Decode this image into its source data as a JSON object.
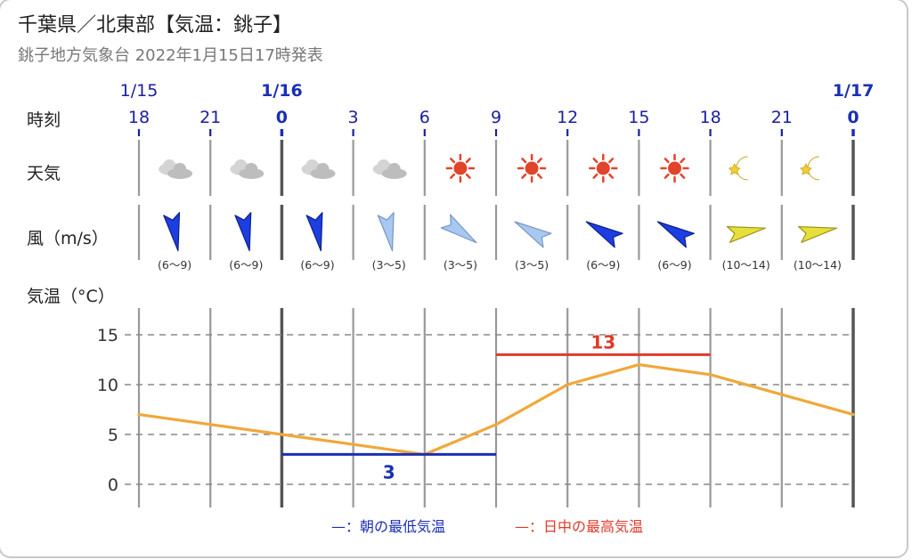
{
  "header": {
    "title": "千葉県／北東部【気温：銚子】",
    "subtitle": "銚子地方気象台 2022年1月15日17時発表"
  },
  "rows": {
    "time_label": "時刻",
    "weather_label": "天気",
    "wind_label": "風（m/s）",
    "temp_label": "気温（°C）"
  },
  "dates": [
    {
      "label": "1/15",
      "at_hour_index": 0,
      "bold": false
    },
    {
      "label": "1/16",
      "at_hour_index": 2,
      "bold": true
    },
    {
      "label": "1/17",
      "at_hour_index": 10,
      "bold": true
    }
  ],
  "hours": [
    "18",
    "21",
    "0",
    "3",
    "6",
    "9",
    "12",
    "15",
    "18",
    "21",
    "0"
  ],
  "bold_hours": [
    2,
    10
  ],
  "weather": [
    "cloudy-icon",
    "cloudy-icon",
    "cloudy-icon",
    "cloudy-icon",
    "sunny-icon",
    "sunny-icon",
    "sunny-icon",
    "sunny-icon",
    "moon-icon",
    "moon-icon"
  ],
  "wind": [
    {
      "label": "(6～9)",
      "toward_deg": 170,
      "strength": "strong"
    },
    {
      "label": "(6～9)",
      "toward_deg": 170,
      "strength": "strong"
    },
    {
      "label": "(6～9)",
      "toward_deg": 170,
      "strength": "strong"
    },
    {
      "label": "(3～5)",
      "toward_deg": 170,
      "strength": "light"
    },
    {
      "label": "(3～5)",
      "toward_deg": 125,
      "strength": "light"
    },
    {
      "label": "(3～5)",
      "toward_deg": 300,
      "strength": "light"
    },
    {
      "label": "(6～9)",
      "toward_deg": 300,
      "strength": "strong"
    },
    {
      "label": "(6～9)",
      "toward_deg": 300,
      "strength": "strong"
    },
    {
      "label": "(10～14)",
      "toward_deg": 80,
      "strength": "very-strong"
    },
    {
      "label": "(10～14)",
      "toward_deg": 80,
      "strength": "very-strong"
    }
  ],
  "chart_data": {
    "type": "line",
    "ylabel": "気温（°C）",
    "ylim": [
      -1,
      17
    ],
    "yticks": [
      0,
      5,
      10,
      15
    ],
    "x": [
      "18",
      "21",
      "0",
      "3",
      "6",
      "9",
      "12",
      "15",
      "18",
      "21",
      "0"
    ],
    "series": [
      {
        "values": [
          7,
          6,
          5,
          4,
          3,
          6,
          10,
          12,
          11,
          9,
          7
        ],
        "color": "#f0a83a"
      }
    ],
    "annotations": [
      {
        "name": "朝の最低気温",
        "value": 3,
        "label": "3",
        "from_index": 2,
        "to_index": 5,
        "color": "#1a2fb5"
      },
      {
        "name": "日中の最高気温",
        "value": 13,
        "label": "13",
        "from_index": 5,
        "to_index": 8,
        "color": "#e03a2a"
      }
    ],
    "grid": true
  },
  "legend": {
    "min_label": "—：朝の最低気温",
    "max_label": "—：日中の最高気温",
    "min_color": "#1a2fb5",
    "max_color": "#e03a2a"
  },
  "colors": {
    "bold_blue": "#1a2fb5",
    "hour_blue": "#1a1f9e",
    "grid_line": "#888888"
  }
}
